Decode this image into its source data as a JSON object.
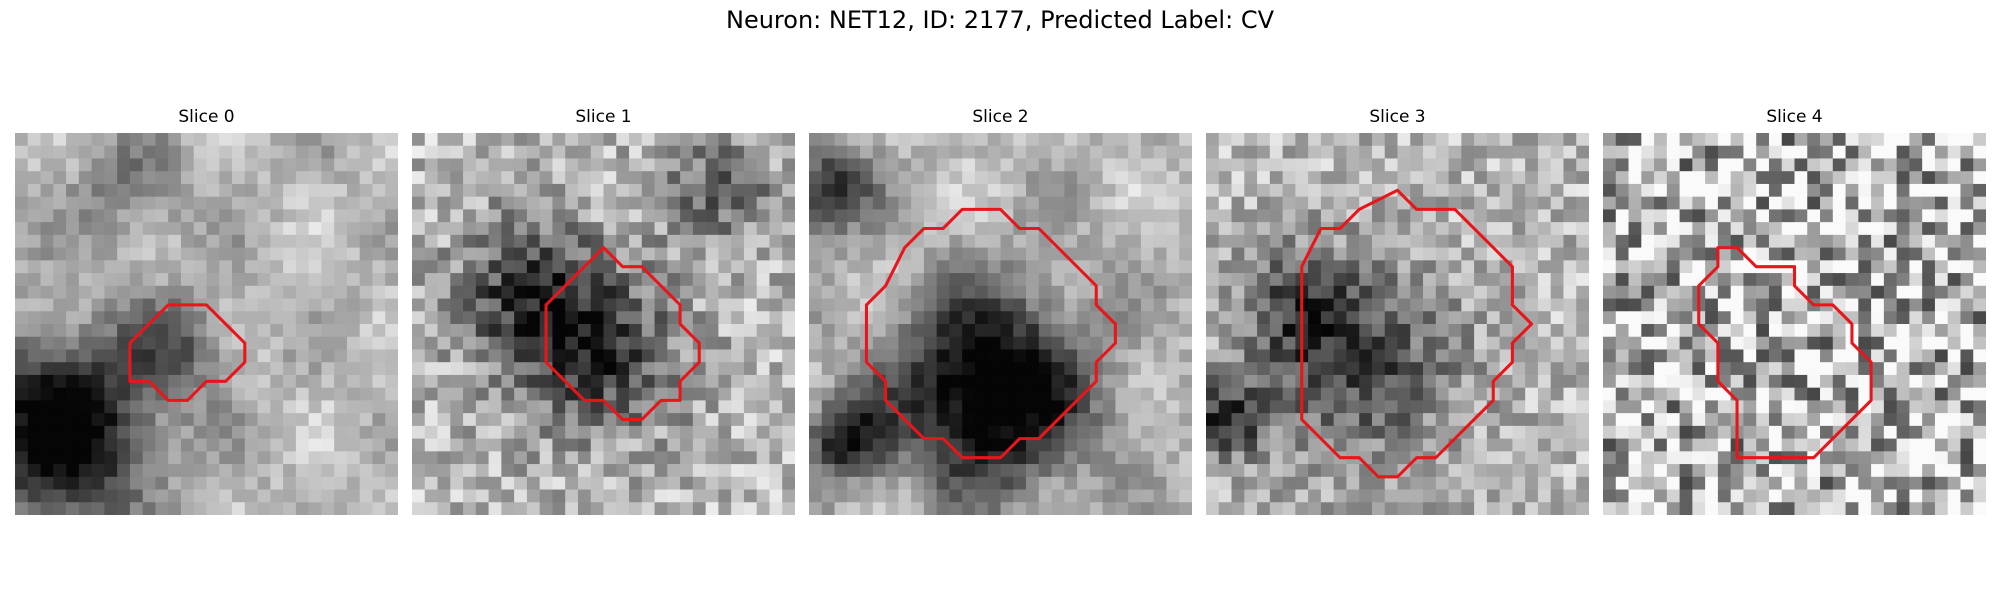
{
  "figure": {
    "title": "Neuron: NET12, ID: 2177, Predicted Label: CV",
    "contour_color": "#e8161b",
    "colormap": "grayscale",
    "panels": [
      {
        "title": "Slice 0",
        "texture": "smooth-blobs",
        "dark_region": "bottom-left",
        "contour": [
          [
            8,
            9
          ],
          [
            10,
            9
          ],
          [
            11,
            10
          ],
          [
            12,
            11
          ],
          [
            12,
            12
          ],
          [
            11,
            13
          ],
          [
            10,
            13
          ],
          [
            9,
            14
          ],
          [
            8,
            14
          ],
          [
            7,
            13
          ],
          [
            6,
            13
          ],
          [
            6,
            11
          ]
        ]
      },
      {
        "title": "Slice 1",
        "texture": "medium",
        "dark_region": "diagonal band through center",
        "contour": [
          [
            9,
            7
          ],
          [
            10,
            6
          ],
          [
            11,
            7
          ],
          [
            12,
            7
          ],
          [
            13,
            8
          ],
          [
            14,
            9
          ],
          [
            14,
            10
          ],
          [
            15,
            11
          ],
          [
            15,
            12
          ],
          [
            14,
            13
          ],
          [
            14,
            14
          ],
          [
            13,
            14
          ],
          [
            12,
            15
          ],
          [
            11,
            15
          ],
          [
            10,
            14
          ],
          [
            9,
            14
          ],
          [
            8,
            13
          ],
          [
            7,
            12
          ],
          [
            7,
            9
          ],
          [
            8,
            8
          ]
        ]
      },
      {
        "title": "Slice 2",
        "texture": "smooth-blobs",
        "dark_region": "lower half of contour",
        "contour": [
          [
            9,
            4
          ],
          [
            10,
            4
          ],
          [
            11,
            5
          ],
          [
            12,
            5
          ],
          [
            13,
            6
          ],
          [
            14,
            7
          ],
          [
            15,
            8
          ],
          [
            15,
            9
          ],
          [
            16,
            10
          ],
          [
            16,
            11
          ],
          [
            15,
            12
          ],
          [
            15,
            13
          ],
          [
            14,
            14
          ],
          [
            13,
            15
          ],
          [
            12,
            16
          ],
          [
            11,
            16
          ],
          [
            10,
            17
          ],
          [
            8,
            17
          ],
          [
            7,
            16
          ],
          [
            6,
            16
          ],
          [
            5,
            15
          ],
          [
            4,
            14
          ],
          [
            4,
            13
          ],
          [
            3,
            12
          ],
          [
            3,
            9
          ],
          [
            4,
            8
          ],
          [
            5,
            6
          ],
          [
            6,
            5
          ],
          [
            7,
            5
          ],
          [
            8,
            4
          ]
        ]
      },
      {
        "title": "Slice 3",
        "texture": "medium",
        "dark_region": "lower-left inside contour",
        "contour": [
          [
            10,
            3
          ],
          [
            11,
            4
          ],
          [
            13,
            4
          ],
          [
            14,
            5
          ],
          [
            15,
            6
          ],
          [
            16,
            7
          ],
          [
            16,
            8
          ],
          [
            16,
            9
          ],
          [
            17,
            10
          ],
          [
            16,
            11
          ],
          [
            16,
            12
          ],
          [
            15,
            13
          ],
          [
            15,
            14
          ],
          [
            14,
            15
          ],
          [
            13,
            16
          ],
          [
            12,
            17
          ],
          [
            11,
            17
          ],
          [
            10,
            18
          ],
          [
            9,
            18
          ],
          [
            8,
            17
          ],
          [
            7,
            17
          ],
          [
            6,
            16
          ],
          [
            5,
            15
          ],
          [
            5,
            13
          ],
          [
            5,
            10
          ],
          [
            5,
            7
          ],
          [
            6,
            5
          ],
          [
            7,
            5
          ],
          [
            8,
            4
          ]
        ]
      },
      {
        "title": "Slice 4",
        "texture": "noisy",
        "dark_region": "none",
        "contour": [
          [
            6,
            6
          ],
          [
            7,
            6
          ],
          [
            8,
            7
          ],
          [
            9,
            7
          ],
          [
            10,
            7
          ],
          [
            10,
            8
          ],
          [
            11,
            9
          ],
          [
            12,
            9
          ],
          [
            13,
            10
          ],
          [
            13,
            11
          ],
          [
            14,
            12
          ],
          [
            14,
            13
          ],
          [
            14,
            14
          ],
          [
            13,
            15
          ],
          [
            12,
            16
          ],
          [
            11,
            17
          ],
          [
            10,
            17
          ],
          [
            8,
            17
          ],
          [
            7,
            17
          ],
          [
            7,
            14
          ],
          [
            6,
            13
          ],
          [
            6,
            12
          ],
          [
            6,
            11
          ],
          [
            5,
            10
          ],
          [
            5,
            9
          ],
          [
            5,
            8
          ],
          [
            6,
            7
          ]
        ]
      }
    ]
  }
}
